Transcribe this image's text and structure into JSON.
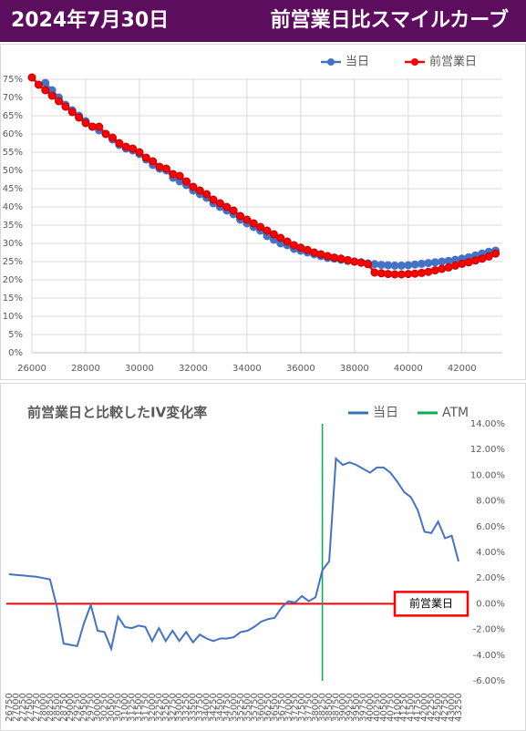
{
  "header": {
    "date": "2024年7月30日",
    "title": "前営業日比スマイルカーブ"
  },
  "chart_data": [
    {
      "type": "line",
      "legend": "top-right",
      "grid": true,
      "x": [
        26000,
        26250,
        26500,
        26750,
        27000,
        27250,
        27500,
        27750,
        28000,
        28250,
        28500,
        28750,
        29000,
        29250,
        29500,
        29750,
        30000,
        30250,
        30500,
        30750,
        31000,
        31250,
        31500,
        31750,
        32000,
        32250,
        32500,
        32750,
        33000,
        33250,
        33500,
        33750,
        34000,
        34250,
        34500,
        34750,
        35000,
        35250,
        35500,
        35750,
        36000,
        36250,
        36500,
        36750,
        37000,
        37250,
        37500,
        37750,
        38000,
        38250,
        38500,
        38750,
        39000,
        39250,
        39500,
        39750,
        40000,
        40250,
        40500,
        40750,
        41000,
        41250,
        41500,
        41750,
        42000,
        42250,
        42500,
        42750,
        43000,
        43250
      ],
      "series": [
        {
          "name": "当日",
          "color": "#4472c4",
          "values": [
            null,
            null,
            74,
            72,
            70,
            68,
            66.5,
            65,
            63.5,
            62,
            61,
            60,
            58.5,
            57,
            56,
            55.5,
            54.5,
            53,
            51.5,
            50.5,
            50,
            48,
            47,
            46,
            44.5,
            43.5,
            42.5,
            41,
            40,
            39,
            38,
            36.5,
            35.5,
            34.5,
            33.5,
            32,
            31,
            30,
            29.5,
            28.5,
            28,
            27.5,
            27,
            26.5,
            26,
            25.8,
            25.5,
            25.2,
            25,
            24.8,
            24.5,
            24.3,
            24.1,
            24,
            23.9,
            23.9,
            24,
            24.2,
            24.4,
            24.6,
            24.8,
            25,
            25.2,
            25.5,
            25.8,
            26.2,
            26.7,
            27.2,
            27.7,
            28
          ]
        },
        {
          "name": "前営業日",
          "color": "#ff0000",
          "values": [
            75.5,
            73.5,
            72,
            70.5,
            69,
            67.5,
            66,
            64.5,
            63,
            62,
            62,
            60,
            59,
            57.5,
            56.5,
            56,
            55,
            53.5,
            52.5,
            51,
            50.5,
            49,
            48.5,
            47,
            45.5,
            44.5,
            43.5,
            42,
            41,
            40,
            39,
            37.5,
            36.5,
            35.5,
            34.5,
            33.5,
            32.5,
            31.5,
            30.5,
            29.5,
            28.8,
            28.2,
            27.5,
            27,
            26.5,
            26.1,
            25.8,
            25.4,
            25,
            24.7,
            24.3,
            22,
            21.8,
            21.6,
            21.5,
            21.5,
            21.6,
            21.7,
            21.9,
            22.2,
            22.6,
            23,
            23.4,
            23.9,
            24.4,
            24.8,
            25.3,
            25.8,
            26.4,
            27.2
          ]
        }
      ],
      "xlim": [
        26000,
        43500
      ],
      "xticks": [
        26000,
        28000,
        30000,
        32000,
        34000,
        36000,
        38000,
        40000,
        42000
      ],
      "ylim": [
        0,
        75
      ],
      "yticks": [
        {
          "value": 0,
          "label": "0%"
        },
        {
          "value": 5,
          "label": "5%"
        },
        {
          "value": 10,
          "label": "10%"
        },
        {
          "value": 15,
          "label": "15%"
        },
        {
          "value": 20,
          "label": "20%"
        },
        {
          "value": 25,
          "label": "25%"
        },
        {
          "value": 30,
          "label": "30%"
        },
        {
          "value": 35,
          "label": "35%"
        },
        {
          "value": 40,
          "label": "40%"
        },
        {
          "value": 45,
          "label": "45%"
        },
        {
          "value": 50,
          "label": "50%"
        },
        {
          "value": 55,
          "label": "55%"
        },
        {
          "value": 60,
          "label": "60%"
        },
        {
          "value": 65,
          "label": "65%"
        },
        {
          "value": 70,
          "label": "70%"
        },
        {
          "value": 75,
          "label": "75%"
        }
      ]
    },
    {
      "type": "line",
      "title": "前営業日と比較したIV変化率",
      "legend": "top-right",
      "categories": [
        "26750",
        "27000",
        "27250",
        "27500",
        "27750",
        "28000",
        "28250",
        "28500",
        "28750",
        "29000",
        "29250",
        "29500",
        "29750",
        "30000",
        "30250",
        "30500",
        "30750",
        "31000",
        "31250",
        "31500",
        "31750",
        "32000",
        "32250",
        "32500",
        "32750",
        "33000",
        "33250",
        "33500",
        "33750",
        "34000",
        "34250",
        "34500",
        "34750",
        "35000",
        "35250",
        "35500",
        "35750",
        "36000",
        "36250",
        "36500",
        "36750",
        "37000",
        "37250",
        "37500",
        "37750",
        "38000",
        "38250",
        "38500",
        "38750",
        "39000",
        "39250",
        "39500",
        "39750",
        "40000",
        "40250",
        "40500",
        "40750",
        "41000",
        "41250",
        "41500",
        "41750",
        "42000",
        "42250",
        "42500",
        "42750",
        "43000",
        "43250"
      ],
      "series": [
        {
          "name": "当日",
          "color": "#4472c4",
          "values": [
            2.3,
            2.25,
            2.2,
            2.15,
            2.1,
            2.0,
            1.9,
            -0.2,
            -3.1,
            -3.2,
            -3.3,
            -1.5,
            -0.1,
            -2.1,
            -2.2,
            -3.5,
            -1.0,
            -1.8,
            -1.9,
            -1.7,
            -1.8,
            -2.9,
            -1.9,
            -2.9,
            -2.1,
            -2.9,
            -2.2,
            -3.0,
            -2.4,
            -2.7,
            -2.9,
            -2.7,
            -2.7,
            -2.6,
            -2.2,
            -2.1,
            -1.8,
            -1.4,
            -1.2,
            -1.1,
            -0.3,
            0.2,
            0.1,
            0.6,
            0.2,
            0.5,
            2.6,
            3.3,
            11.3,
            10.8,
            11.0,
            10.8,
            10.5,
            10.2,
            10.6,
            10.6,
            10.2,
            9.5,
            8.7,
            8.3,
            7.3,
            5.6,
            5.5,
            6.4,
            5.1,
            5.3,
            3.3
          ]
        }
      ],
      "atm": {
        "name": "ATM",
        "color": "#00b050",
        "category": "38250"
      },
      "reference_line": {
        "value": 0,
        "label": "前営業日",
        "color": "#ff0000"
      },
      "ylim": [
        -6,
        14
      ],
      "yticks": [
        {
          "value": -6,
          "label": "-6.00%"
        },
        {
          "value": -4,
          "label": "-4.00%"
        },
        {
          "value": -2,
          "label": "-2.00%"
        },
        {
          "value": 0,
          "label": "0.00%"
        },
        {
          "value": 2,
          "label": "2.00%"
        },
        {
          "value": 4,
          "label": "4.00%"
        },
        {
          "value": 6,
          "label": "6.00%"
        },
        {
          "value": 8,
          "label": "8.00%"
        },
        {
          "value": 10,
          "label": "10.00%"
        },
        {
          "value": 12,
          "label": "12.00%"
        },
        {
          "value": 14,
          "label": "14.00%"
        }
      ]
    }
  ]
}
